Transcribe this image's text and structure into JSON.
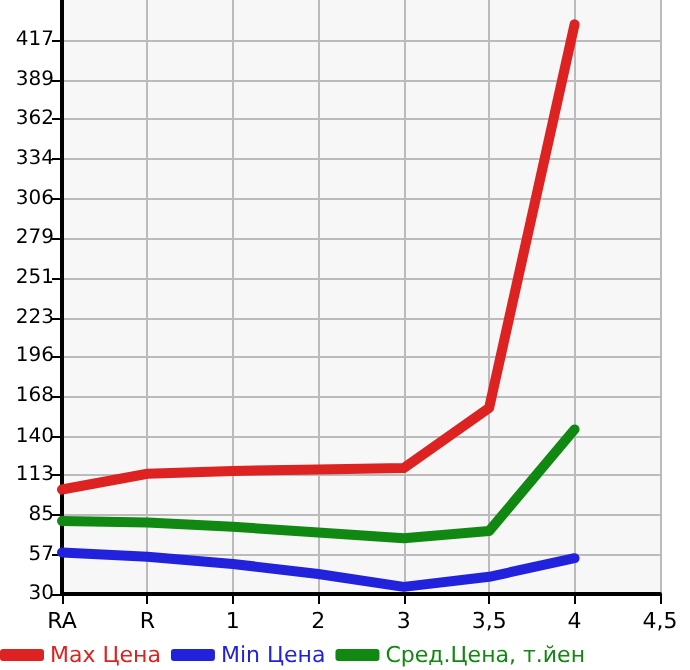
{
  "chart_data": {
    "type": "line",
    "categories": [
      "RA",
      "R",
      "1",
      "2",
      "3",
      "3,5",
      "4",
      "4,5"
    ],
    "series": [
      {
        "name": "Max Цена",
        "color": "#dd2222",
        "values": [
          103,
          114,
          116,
          117,
          118,
          160,
          428,
          null
        ]
      },
      {
        "name": "Min Цена",
        "color": "#2222dd",
        "values": [
          59,
          56,
          51,
          44,
          35,
          42,
          55,
          null
        ]
      },
      {
        "name": "Сред.Цена, т.йен",
        "color": "#118811",
        "values": [
          81,
          80,
          77,
          73,
          69,
          74,
          145,
          null
        ]
      }
    ],
    "ylim": [
      30,
      445
    ],
    "yticks": [
      30,
      57,
      85,
      113,
      140,
      168,
      196,
      223,
      251,
      279,
      306,
      334,
      362,
      389,
      417
    ],
    "grid": true,
    "legend": "bottom",
    "marker": "none",
    "line_style": "solid"
  }
}
